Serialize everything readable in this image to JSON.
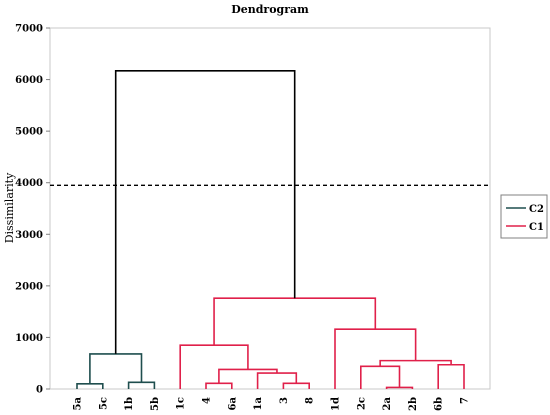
{
  "chart_data": {
    "type": "dendrogram",
    "title": "Dendrogram",
    "xlabel": "",
    "ylabel": "Dissimilarity",
    "ylim": [
      0,
      7000
    ],
    "yticks": [
      0,
      1000,
      2000,
      3000,
      4000,
      5000,
      6000,
      7000
    ],
    "leaves": [
      "5a",
      "5c",
      "1b",
      "5b",
      "1c",
      "4",
      "6a",
      "1a",
      "3",
      "8",
      "1d",
      "2c",
      "2a",
      "2b",
      "6b",
      "7"
    ],
    "cut_line": 3950,
    "colors": {
      "C2": "#1f4e4e",
      "C1": "#e0204a",
      "root": "#000000",
      "cut": "#000000"
    },
    "legend": [
      {
        "name": "C2",
        "color": "#1f4e4e"
      },
      {
        "name": "C1",
        "color": "#e0204a"
      }
    ],
    "legend_position": "right",
    "merges": [
      {
        "left": "5a",
        "right": "5c",
        "height": 100,
        "cluster": "C2"
      },
      {
        "left": "1b",
        "right": "5b",
        "height": 130,
        "cluster": "C2"
      },
      {
        "left": 0,
        "right": 1,
        "height": 680,
        "cluster": "C2"
      },
      {
        "left": "4",
        "right": "6a",
        "height": 110,
        "cluster": "C1"
      },
      {
        "left": "3",
        "right": "8",
        "height": 110,
        "cluster": "C1"
      },
      {
        "left": "1a",
        "right": 4,
        "height": 310,
        "cluster": "C1"
      },
      {
        "left": 3,
        "right": 5,
        "height": 380,
        "cluster": "C1"
      },
      {
        "left": "1c",
        "right": 6,
        "height": 850,
        "cluster": "C1"
      },
      {
        "left": "2a",
        "right": "2b",
        "height": 30,
        "cluster": "C1"
      },
      {
        "left": "2c",
        "right": 8,
        "height": 440,
        "cluster": "C1"
      },
      {
        "left": "6b",
        "right": "7",
        "height": 470,
        "cluster": "C1"
      },
      {
        "left": 9,
        "right": 10,
        "height": 550,
        "cluster": "C1"
      },
      {
        "left": "1d",
        "right": 11,
        "height": 1160,
        "cluster": "C1"
      },
      {
        "left": 7,
        "right": 12,
        "height": 1760,
        "cluster": "C1"
      },
      {
        "left": 2,
        "right": 13,
        "height": 6170,
        "cluster": "root"
      }
    ]
  }
}
